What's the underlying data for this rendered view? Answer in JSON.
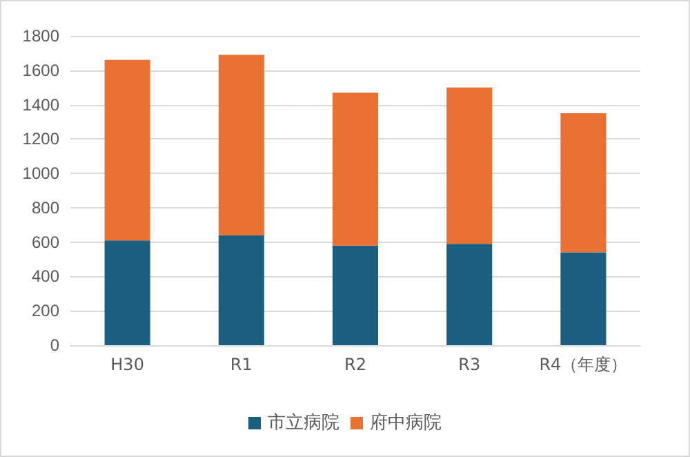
{
  "chart_data": {
    "type": "bar",
    "stacked": true,
    "categories": [
      "H30",
      "R1",
      "R2",
      "R3",
      "R4（年度）"
    ],
    "series": [
      {
        "name": "市立病院",
        "color": "#1a5e80",
        "values": [
          610,
          640,
          580,
          590,
          540
        ]
      },
      {
        "name": "府中病院",
        "color": "#e97132",
        "values": [
          1050,
          1050,
          890,
          910,
          810
        ]
      }
    ],
    "ylim": [
      0,
      1800
    ],
    "yticks": [
      0,
      200,
      400,
      600,
      800,
      1000,
      1200,
      1400,
      1600,
      1800
    ],
    "grid": "y",
    "legend": "bottom"
  }
}
